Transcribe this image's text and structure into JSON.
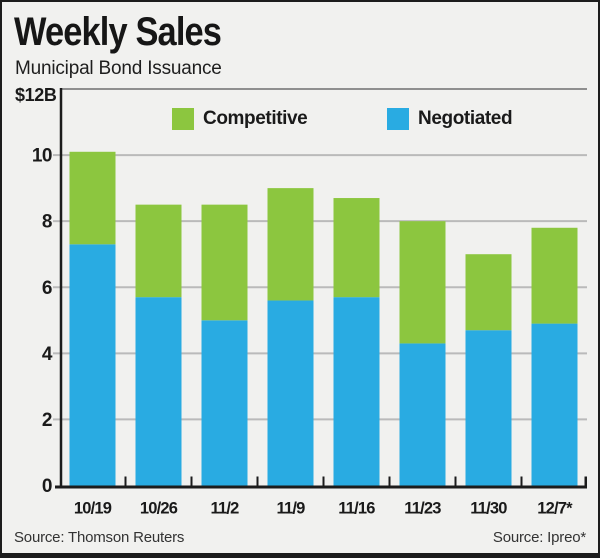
{
  "header": {
    "title": "Weekly Sales",
    "subtitle": "Municipal Bond Issuance"
  },
  "legend": {
    "items": [
      {
        "label": "Competitive",
        "color": "#8cc63f"
      },
      {
        "label": "Negotiated",
        "color": "#29abe2"
      }
    ]
  },
  "footer": {
    "source_left": "Source: Thomson Reuters",
    "source_right": "Source: Ipreo*"
  },
  "colors": {
    "background": "#f1f1ef",
    "frame": "#1c1c1c",
    "competitive_green": "#8cc63f",
    "negotiated_blue": "#29abe2",
    "gridline": "#bababa",
    "plot_top_line": "#8f8f8f",
    "axis": "#1c1c1c",
    "text": "#1a1a1a"
  },
  "chart_data": {
    "type": "bar",
    "stacked": true,
    "title": "Weekly Sales",
    "subtitle": "Municipal Bond Issuance",
    "units": "billions of dollars",
    "y_axis_top_label": "$12B",
    "ylim": [
      0,
      12
    ],
    "yticks": [
      0,
      2,
      4,
      6,
      8,
      10
    ],
    "grid": "horizontal",
    "legend_position": "top-inside",
    "categories": [
      "10/19",
      "10/26",
      "11/2",
      "11/9",
      "11/16",
      "11/23",
      "11/30",
      "12/7*"
    ],
    "series": [
      {
        "name": "Negotiated",
        "color": "#29abe2",
        "values": [
          7.3,
          5.7,
          5.0,
          5.6,
          5.7,
          4.3,
          4.7,
          4.9
        ]
      },
      {
        "name": "Competitive",
        "color": "#8cc63f",
        "values": [
          2.8,
          2.8,
          3.5,
          3.4,
          3.0,
          3.7,
          2.3,
          2.9
        ]
      }
    ],
    "totals": [
      10.1,
      8.5,
      8.5,
      9.0,
      8.7,
      8.0,
      7.0,
      7.8
    ]
  }
}
